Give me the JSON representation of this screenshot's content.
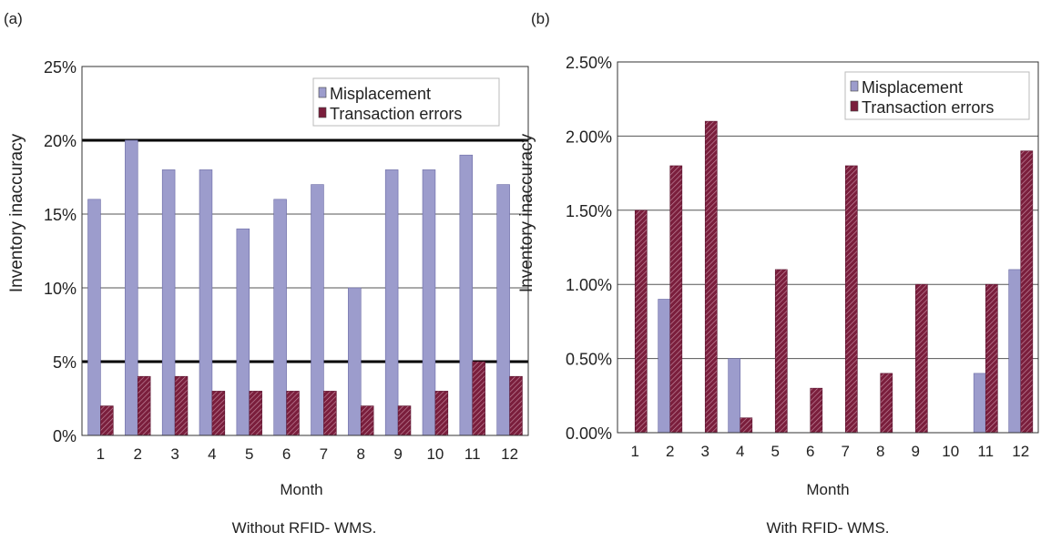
{
  "figure": {
    "panels": [
      "(a)",
      "(b)"
    ]
  },
  "chart_data": [
    {
      "type": "bar",
      "panel_label": "(a)",
      "caption": "Without RFID-   WMS.",
      "xlabel": "Month",
      "ylabel": "Inventory inaccuracy",
      "categories": [
        "1",
        "2",
        "3",
        "4",
        "5",
        "6",
        "7",
        "8",
        "9",
        "10",
        "11",
        "12"
      ],
      "ylim": [
        0,
        25
      ],
      "yticks": [
        0,
        5,
        10,
        15,
        20,
        25
      ],
      "ytick_labels": [
        "0%",
        "5%",
        "10%",
        "15%",
        "20%",
        "25%"
      ],
      "grid": true,
      "emphasized_lines": [
        5,
        20
      ],
      "legend_position": "top-right",
      "series": [
        {
          "name": "Misplacement",
          "color": "#9c9ccc",
          "values": [
            16,
            20,
            18,
            18,
            14,
            16,
            17,
            10,
            18,
            18,
            19,
            17
          ]
        },
        {
          "name": "Transaction errors",
          "color": "#7a1e3c",
          "values": [
            2,
            4,
            4,
            3,
            3,
            3,
            3,
            2,
            2,
            3,
            5,
            4
          ]
        }
      ]
    },
    {
      "type": "bar",
      "panel_label": "(b)",
      "caption": "With RFID-   WMS.",
      "xlabel": "Month",
      "ylabel": "Inventory inaccuracy",
      "categories": [
        "1",
        "2",
        "3",
        "4",
        "5",
        "6",
        "7",
        "8",
        "9",
        "10",
        "11",
        "12"
      ],
      "ylim": [
        0,
        2.5
      ],
      "yticks": [
        0,
        0.5,
        1.0,
        1.5,
        2.0,
        2.5
      ],
      "ytick_labels": [
        "0.00%",
        "0.50%",
        "1.00%",
        "1.50%",
        "2.00%",
        "2.50%"
      ],
      "grid": true,
      "emphasized_lines": [],
      "legend_position": "top-right",
      "series": [
        {
          "name": "Misplacement",
          "color": "#9c9ccc",
          "values": [
            0,
            0.9,
            0,
            0.5,
            0,
            0,
            0,
            0,
            0,
            0,
            0.4,
            1.1
          ]
        },
        {
          "name": "Transaction errors",
          "color": "#7a1e3c",
          "values": [
            1.5,
            1.8,
            2.1,
            0.1,
            1.1,
            0.3,
            1.8,
            0.4,
            1.0,
            0,
            1.0,
            1.9
          ]
        }
      ]
    }
  ]
}
